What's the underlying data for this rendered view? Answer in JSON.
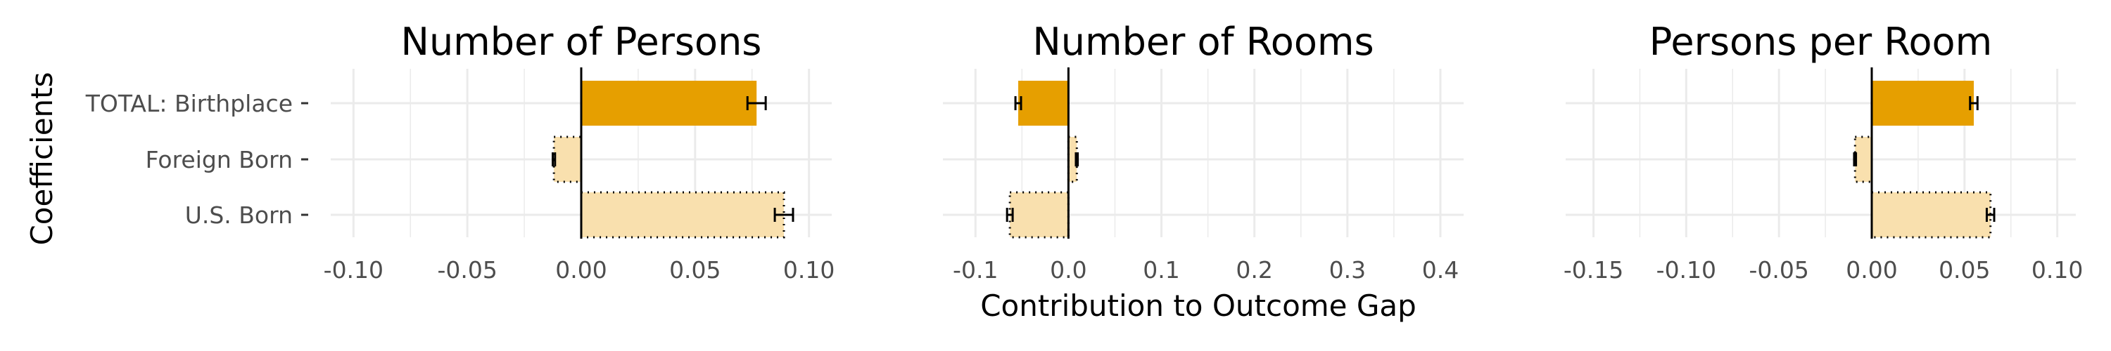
{
  "chart_data": {
    "type": "bar",
    "orientation": "horizontal",
    "ylabel": "Coefficients",
    "xlabel": "Contribution to Outcome Gap",
    "categories": [
      "TOTAL: Birthplace",
      "Foreign Born",
      "U.S. Born"
    ],
    "colors": {
      "total_fill": "#E69F00",
      "component_fill": "#F9E0AE",
      "zero_line": "#000000",
      "grid": "#EBEBEB"
    },
    "panels": [
      {
        "title": "Number of Persons",
        "xlim": [
          -0.11,
          0.11
        ],
        "xticks": [
          "-0.10",
          "-0.05",
          "0.00",
          "0.05",
          "0.10"
        ],
        "xtick_values": [
          -0.1,
          -0.05,
          0.0,
          0.05,
          0.1
        ],
        "bars": [
          {
            "category": "TOTAL: Birthplace",
            "value": 0.077,
            "err_low": 0.073,
            "err_high": 0.081,
            "style": "total"
          },
          {
            "category": "Foreign Born",
            "value": -0.012,
            "err_low": -0.0125,
            "err_high": -0.0115,
            "style": "component"
          },
          {
            "category": "U.S. Born",
            "value": 0.089,
            "err_low": 0.085,
            "err_high": 0.093,
            "style": "component"
          }
        ]
      },
      {
        "title": "Number of Rooms",
        "xlim": [
          -0.135,
          0.425
        ],
        "xticks": [
          "-0.1",
          "0.0",
          "0.1",
          "0.2",
          "0.3",
          "0.4"
        ],
        "xtick_values": [
          -0.1,
          0.0,
          0.1,
          0.2,
          0.3,
          0.4
        ],
        "bars": [
          {
            "category": "TOTAL: Birthplace",
            "value": -0.054,
            "err_low": -0.057,
            "err_high": -0.051,
            "style": "total"
          },
          {
            "category": "Foreign Born",
            "value": 0.009,
            "err_low": 0.008,
            "err_high": 0.01,
            "style": "component"
          },
          {
            "category": "U.S. Born",
            "value": -0.063,
            "err_low": -0.066,
            "err_high": -0.06,
            "style": "component"
          }
        ]
      },
      {
        "title": "Persons per Room",
        "xlim": [
          -0.165,
          0.11
        ],
        "xticks": [
          "-0.15",
          "-0.10",
          "-0.05",
          "0.00",
          "0.05",
          "0.10"
        ],
        "xtick_values": [
          -0.15,
          -0.1,
          -0.05,
          0.0,
          0.05,
          0.1
        ],
        "bars": [
          {
            "category": "TOTAL: Birthplace",
            "value": 0.055,
            "err_low": 0.053,
            "err_high": 0.057,
            "style": "total"
          },
          {
            "category": "Foreign Born",
            "value": -0.009,
            "err_low": -0.0095,
            "err_high": -0.0085,
            "style": "component"
          },
          {
            "category": "U.S. Born",
            "value": 0.064,
            "err_low": 0.062,
            "err_high": 0.066,
            "style": "component"
          }
        ]
      }
    ]
  }
}
